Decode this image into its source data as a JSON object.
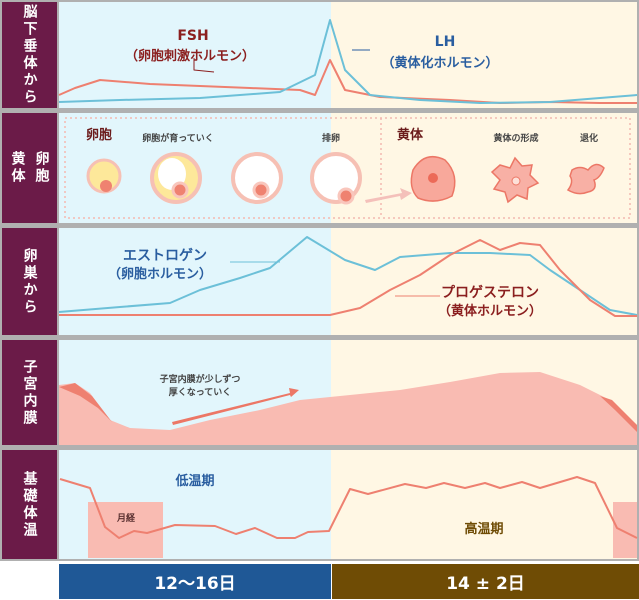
{
  "rows": {
    "pituitary": "脳下垂体から",
    "follicle_corpus": {
      "left": "卵胞",
      "right": "黄体"
    },
    "ovary": "卵巣から",
    "endometrium": "子宮内膜",
    "bbt": "基礎体温"
  },
  "hormones": {
    "fsh": {
      "name": "FSH",
      "sub": "（卵胞刺激ホルモン）"
    },
    "lh": {
      "name": "LH",
      "sub": "（黄体化ホルモン）"
    },
    "estrogen": {
      "name": "エストロゲン",
      "sub": "（卵胞ホルモン）"
    },
    "progesterone": {
      "name": "プロゲステロン",
      "sub": "（黄体ホルモン）"
    }
  },
  "ovary_stages": {
    "follicle": "卵胞",
    "growing": "卵胞が育っていく",
    "ovulation": "排卵",
    "corpus_luteum": "黄体",
    "formation": "黄体の形成",
    "regression": "退化"
  },
  "endometrium_note": [
    "子宮内膜が少しずつ",
    "厚くなっていく"
  ],
  "bbt": {
    "low": "低温期",
    "high": "高温期",
    "menses": "月経"
  },
  "phases": {
    "follicular": "12～16日",
    "luteal": "14 ± 2日"
  },
  "colors": {
    "sidebar": "#6b1b48",
    "follicular_bg": "#e2f6fc",
    "luteal_bg": "#fff7e4",
    "fsh_line": "#ee8070",
    "lh_line": "#6cc0d8",
    "follicular_bar": "#1f5896",
    "luteal_bar": "#6f4c05",
    "endometrium": "#f9bbb2"
  }
}
